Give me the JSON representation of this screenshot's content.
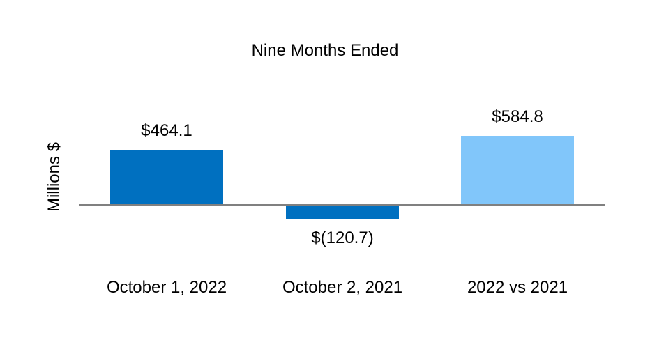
{
  "chart_data": {
    "type": "bar",
    "title": "Nine Months Ended",
    "xlabel": "",
    "ylabel": "Millions $",
    "categories": [
      "October 1, 2022",
      "October 2, 2021",
      "2022 vs 2021"
    ],
    "values": [
      464.1,
      -120.7,
      584.8
    ],
    "data_labels": [
      "$464.1",
      "$(120.7)",
      "$584.8"
    ],
    "bar_colors": [
      "#0070C0",
      "#0070C0",
      "#81C6FA"
    ],
    "axis_color": "#808080",
    "text_color": "#000000",
    "background_color": "#FFFFFF",
    "grid": false,
    "legend": false,
    "yaxis_ticks_visible": false,
    "baseline_value": 0
  }
}
